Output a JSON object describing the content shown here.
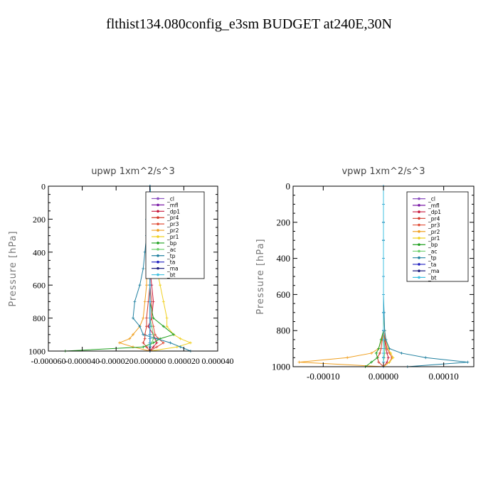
{
  "page_title": "flthist134.080config_e3sm  BUDGET at240E,30N",
  "chart_data": [
    {
      "type": "line",
      "title": "upwp   1xm^2/s^3",
      "ylabel": "Pressure [hPa]",
      "xlabel": "",
      "xlim": [
        -6e-05,
        4e-05
      ],
      "ylim": [
        1000,
        0
      ],
      "xticks": [
        -6e-05,
        -4e-05,
        -2e-05,
        0.0,
        2e-05,
        4e-05
      ],
      "xtick_labels": [
        "-0.000060",
        "-0.000040",
        "-0.000020",
        "0.000000",
        "0.000020",
        "0.000040"
      ],
      "yticks": [
        0,
        200,
        400,
        600,
        800,
        1000
      ],
      "ytick_labels": [
        "0",
        "200",
        "400",
        "600",
        "800",
        "1000"
      ],
      "legend_position": "top-right",
      "grid": false,
      "pressure_levels": [
        0,
        100,
        200,
        300,
        400,
        500,
        600,
        700,
        800,
        850,
        900,
        925,
        950,
        975,
        1000
      ],
      "series": [
        {
          "name": "_cl",
          "color": "#8a4fc0",
          "values": [
            0,
            0,
            0,
            0,
            0,
            0,
            0,
            0,
            0,
            0,
            0,
            0,
            0,
            0,
            0
          ]
        },
        {
          "name": "_mfl",
          "color": "#7a1aa6",
          "values": [
            0,
            0,
            0,
            0,
            0,
            0,
            0,
            0,
            0,
            0,
            0,
            0,
            0,
            0,
            0
          ]
        },
        {
          "name": "_dp1",
          "color": "#c8183c",
          "values": [
            0,
            0,
            0,
            0,
            0,
            0,
            1e-06,
            2e-06,
            1e-06,
            -1e-06,
            2e-06,
            3e-06,
            4e-06,
            2e-06,
            0
          ]
        },
        {
          "name": "_pr4",
          "color": "#d23a2a",
          "values": [
            0,
            0,
            0,
            0,
            0,
            0,
            0,
            -1e-06,
            -2e-06,
            -2e-06,
            -3e-06,
            -3e-06,
            -4e-06,
            -2e-06,
            0
          ]
        },
        {
          "name": "_pr3",
          "color": "#e0503a",
          "values": [
            0,
            0,
            0,
            0,
            0,
            0,
            0,
            1e-06,
            1e-06,
            2e-06,
            3e-06,
            5e-06,
            8e-06,
            4e-06,
            0
          ]
        },
        {
          "name": "_pr2",
          "color": "#f0a020",
          "values": [
            0,
            0,
            -1e-06,
            -1e-06,
            -1e-06,
            -2e-06,
            -2e-06,
            -3e-06,
            -4e-06,
            -6e-06,
            -1e-05,
            -1.2e-05,
            -1.8e-05,
            -1e-05,
            0
          ]
        },
        {
          "name": "_pr1",
          "color": "#f0d020",
          "values": [
            0,
            1e-06,
            2e-06,
            3e-06,
            4e-06,
            4e-06,
            6e-06,
            8e-06,
            1e-05,
            1e-05,
            1.4e-05,
            1.8e-05,
            2.4e-05,
            1.6e-05,
            0
          ]
        },
        {
          "name": "_bp",
          "color": "#20a020",
          "values": [
            0,
            0,
            0,
            0,
            0,
            0,
            0,
            0,
            2e-06,
            8e-06,
            1.4e-05,
            6e-06,
            2e-06,
            -4e-06,
            -5e-05
          ]
        },
        {
          "name": "_ac",
          "color": "#70d070",
          "values": [
            0,
            0,
            0,
            0,
            0,
            0,
            0,
            0,
            0,
            1e-06,
            2e-06,
            2e-06,
            1e-06,
            0,
            0
          ]
        },
        {
          "name": "_tp",
          "color": "#2080a0",
          "values": [
            0,
            1e-06,
            -2e-06,
            -2e-06,
            -3e-06,
            -4e-06,
            -6e-06,
            -9e-06,
            -1e-05,
            -6e-06,
            -4e-06,
            4e-06,
            1.2e-05,
            1.8e-05,
            2.4e-05
          ]
        },
        {
          "name": "_ta",
          "color": "#2020c0",
          "values": [
            0,
            0,
            0,
            0,
            0,
            0,
            0,
            0,
            0,
            0,
            0,
            0,
            0,
            0,
            0
          ]
        },
        {
          "name": "_ma",
          "color": "#202080",
          "values": [
            0,
            0,
            0,
            0,
            0,
            0,
            0,
            0,
            0,
            0,
            0,
            0,
            0,
            0,
            0
          ]
        },
        {
          "name": "_bt",
          "color": "#40c0e0",
          "values": [
            0,
            1e-06,
            0,
            0,
            0,
            0,
            0,
            0,
            0,
            0,
            0,
            0,
            0,
            0,
            0
          ]
        }
      ]
    },
    {
      "type": "line",
      "title": "vpwp   1xm^2/s^3",
      "ylabel": "Pressure [hPa]",
      "xlabel": "",
      "xlim": [
        -0.00015,
        0.00015
      ],
      "ylim": [
        1000,
        0
      ],
      "xticks": [
        -0.0001,
        0.0,
        0.0001
      ],
      "xtick_labels": [
        "-0.00010",
        "0.00000",
        "0.00010"
      ],
      "yticks": [
        0,
        200,
        400,
        600,
        800,
        1000
      ],
      "ytick_labels": [
        "0",
        "200",
        "400",
        "600",
        "800",
        "1000"
      ],
      "legend_position": "top-right",
      "grid": false,
      "pressure_levels": [
        0,
        100,
        200,
        300,
        400,
        500,
        600,
        700,
        800,
        850,
        900,
        925,
        950,
        975,
        1000
      ],
      "series": [
        {
          "name": "_cl",
          "color": "#8a4fc0",
          "values": [
            0,
            0,
            0,
            0,
            0,
            0,
            0,
            0,
            0,
            0,
            0,
            0,
            0,
            0,
            0
          ]
        },
        {
          "name": "_mfl",
          "color": "#7a1aa6",
          "values": [
            0,
            0,
            0,
            0,
            0,
            0,
            0,
            0,
            0,
            0,
            0,
            0,
            0,
            0,
            0
          ]
        },
        {
          "name": "_dp1",
          "color": "#c8183c",
          "values": [
            0,
            0,
            0,
            0,
            0,
            0,
            0,
            0,
            0,
            2e-06,
            4e-06,
            6e-06,
            8e-06,
            6e-06,
            0
          ]
        },
        {
          "name": "_pr4",
          "color": "#d23a2a",
          "values": [
            0,
            0,
            0,
            0,
            0,
            0,
            0,
            0,
            0,
            -2e-06,
            -4e-06,
            -6e-06,
            -1e-05,
            -8e-06,
            0
          ]
        },
        {
          "name": "_pr3",
          "color": "#e0503a",
          "values": [
            0,
            0,
            0,
            0,
            0,
            0,
            0,
            0,
            0,
            3e-06,
            6e-06,
            1e-05,
            1.4e-05,
            1e-05,
            0
          ]
        },
        {
          "name": "_pr2",
          "color": "#f0a020",
          "values": [
            0,
            0,
            0,
            0,
            0,
            0,
            0,
            0,
            0,
            -3e-06,
            -8e-06,
            -2e-05,
            -6e-05,
            -0.00014,
            0
          ]
        },
        {
          "name": "_pr1",
          "color": "#f0d020",
          "values": [
            0,
            0,
            0,
            0,
            0,
            0,
            0,
            0,
            2e-06,
            4e-06,
            8e-06,
            1.2e-05,
            1.6e-05,
            1e-05,
            0
          ]
        },
        {
          "name": "_bp",
          "color": "#20a020",
          "values": [
            0,
            0,
            0,
            0,
            0,
            0,
            0,
            0,
            0,
            -4e-06,
            -8e-06,
            -1.2e-05,
            -1e-05,
            -2e-05,
            -3e-05
          ]
        },
        {
          "name": "_ac",
          "color": "#70d070",
          "values": [
            0,
            0,
            0,
            0,
            0,
            0,
            0,
            0,
            0,
            1e-06,
            2e-06,
            2e-06,
            1e-06,
            0,
            0
          ]
        },
        {
          "name": "_tp",
          "color": "#2080a0",
          "values": [
            0,
            0,
            0,
            0,
            0,
            0,
            0,
            1e-06,
            2e-06,
            4e-06,
            1e-05,
            3e-05,
            7e-05,
            0.00014,
            4e-05
          ]
        },
        {
          "name": "_ta",
          "color": "#2020c0",
          "values": [
            0,
            0,
            0,
            0,
            0,
            0,
            0,
            0,
            0,
            0,
            0,
            0,
            0,
            0,
            0
          ]
        },
        {
          "name": "_ma",
          "color": "#202080",
          "values": [
            0,
            0,
            0,
            0,
            0,
            0,
            0,
            0,
            0,
            0,
            0,
            0,
            0,
            0,
            0
          ]
        },
        {
          "name": "_bt",
          "color": "#40c0e0",
          "values": [
            0,
            0,
            0,
            0,
            0,
            0,
            0,
            0,
            0,
            0,
            0,
            0,
            0,
            0,
            0
          ]
        }
      ]
    }
  ]
}
